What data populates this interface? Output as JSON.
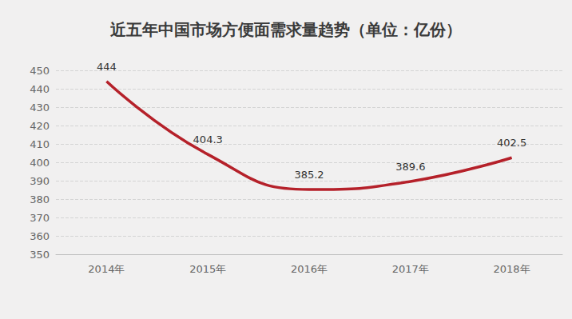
{
  "chart_data": {
    "type": "line",
    "title": "近五年中国市场方便面需求量趋势（单位：亿份）",
    "categories": [
      "2014年",
      "2015年",
      "2016年",
      "2017年",
      "2018年"
    ],
    "values": [
      444,
      404.3,
      385.2,
      389.6,
      402.5
    ],
    "color": "#b5212a",
    "ylim": [
      350,
      450
    ],
    "yticks": [
      350,
      360,
      370,
      380,
      390,
      400,
      410,
      420,
      430,
      440,
      450
    ],
    "grid": true,
    "data_labels": true
  }
}
